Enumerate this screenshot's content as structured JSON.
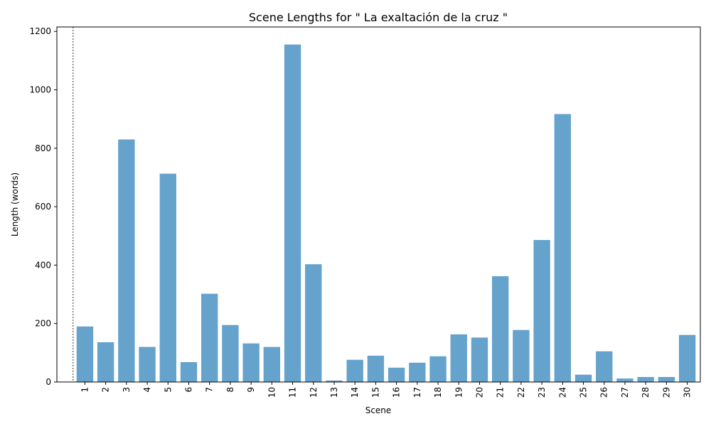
{
  "chart_data": {
    "type": "bar",
    "title": "Scene Lengths for \" La exaltación de la cruz \"",
    "xlabel": "Scene",
    "ylabel": "Length (words)",
    "categories": [
      "1",
      "2",
      "3",
      "4",
      "5",
      "6",
      "7",
      "8",
      "9",
      "10",
      "11",
      "12",
      "13",
      "14",
      "15",
      "16",
      "17",
      "18",
      "19",
      "20",
      "21",
      "22",
      "23",
      "24",
      "25",
      "26",
      "27",
      "28",
      "29",
      "30"
    ],
    "values": [
      190,
      136,
      830,
      120,
      713,
      68,
      302,
      195,
      132,
      120,
      1155,
      403,
      5,
      76,
      90,
      49,
      66,
      88,
      163,
      152,
      362,
      178,
      486,
      917,
      25,
      105,
      12,
      17,
      17,
      161
    ],
    "ylim": [
      0,
      1215
    ],
    "yticks": [
      0,
      200,
      400,
      600,
      800,
      1000,
      1200
    ],
    "bar_color": "#65a2cc",
    "grid": false,
    "reference_line": {
      "x": 0,
      "style": "dashed"
    }
  }
}
